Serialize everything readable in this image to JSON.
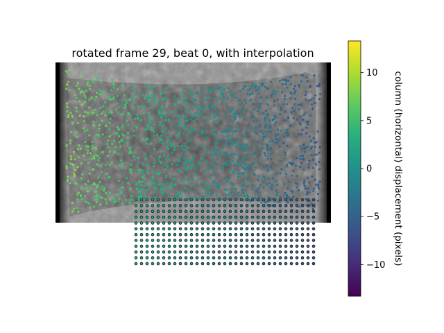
{
  "chart_data": {
    "type": "scatter",
    "title": "rotated frame 29, beat 0, with interpolation",
    "colorbar": {
      "label": "column (horizontal) displacement (pixels)",
      "colormap": "viridis",
      "range": [
        -13.3,
        13.3
      ],
      "ticks": [
        -10,
        -5,
        0,
        5,
        10
      ],
      "tick_labels": [
        "−10",
        "−5",
        "0",
        "5",
        "10"
      ]
    },
    "background_image": "grayscale rotated microscopy frame of tissue",
    "series": [
      {
        "points": "tracked",
        "trend": "displacement decreases left to right",
        "value_left": 8,
        "value_right": -6
      },
      {
        "points": "interpolated grid",
        "rows": 12,
        "cols": 33,
        "value_left": 2,
        "value_right": -6
      }
    ],
    "grid": false,
    "axes_visible": false
  }
}
